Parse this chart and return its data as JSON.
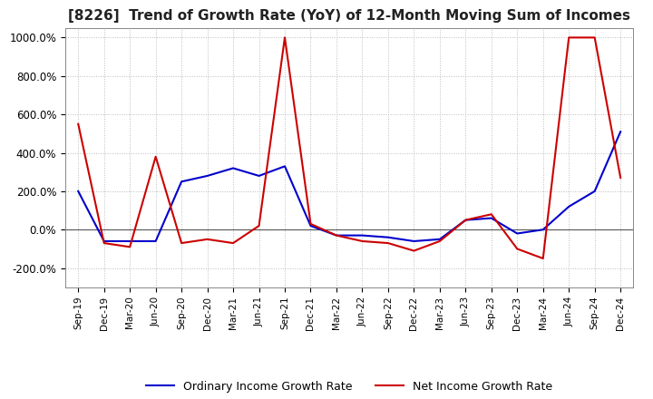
{
  "title": "[8226]  Trend of Growth Rate (YoY) of 12-Month Moving Sum of Incomes",
  "title_fontsize": 11,
  "ylim": [
    -300,
    1050
  ],
  "yticks": [
    -200,
    0,
    200,
    400,
    600,
    800,
    1000
  ],
  "ytick_labels": [
    "-200.0%",
    "0.0%",
    "200.0%",
    "400.0%",
    "600.0%",
    "800.0%",
    "1000.0%"
  ],
  "line1_color": "#0000CC",
  "line2_color": "#CC0000",
  "line1_label": "Ordinary Income Growth Rate",
  "line2_label": "Net Income Growth Rate",
  "background_color": "#FFFFFF",
  "grid_color": "#BBBBBB",
  "x_labels": [
    "Sep-19",
    "Dec-19",
    "Mar-20",
    "Jun-20",
    "Sep-20",
    "Dec-20",
    "Mar-21",
    "Jun-21",
    "Sep-21",
    "Dec-21",
    "Mar-22",
    "Jun-22",
    "Sep-22",
    "Dec-22",
    "Mar-23",
    "Jun-23",
    "Sep-23",
    "Dec-23",
    "Mar-24",
    "Jun-24",
    "Sep-24",
    "Dec-24"
  ],
  "ordinary_income": [
    200,
    -60,
    -60,
    -60,
    250,
    280,
    320,
    280,
    330,
    20,
    -30,
    -30,
    -40,
    -60,
    -50,
    50,
    60,
    -20,
    0,
    120,
    200,
    510
  ],
  "net_income": [
    550,
    -70,
    -90,
    380,
    -70,
    -50,
    -70,
    20,
    1000,
    30,
    -30,
    -60,
    -70,
    -110,
    -60,
    50,
    80,
    -100,
    -150,
    1000,
    1000,
    270
  ]
}
